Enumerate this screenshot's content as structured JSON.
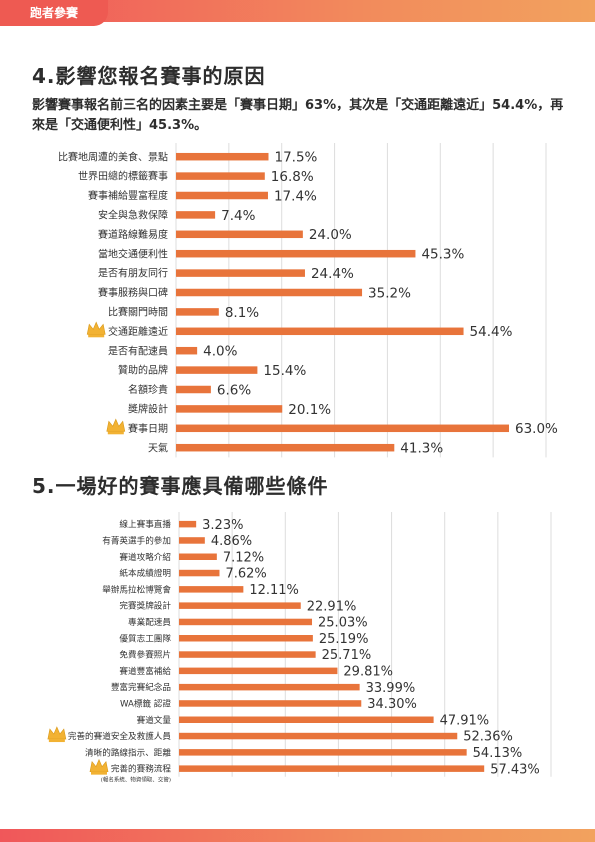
{
  "header": {
    "tab_label": "跑者參賽"
  },
  "section4": {
    "title": "4.影響您報名賽事的原因",
    "summary": "影響賽事報名前三名的因素主要是「賽事日期」63%，其次是「交通距離遠近」54.4%，再來是「交通便利性」45.3%。"
  },
  "section5": {
    "title": "5.一場好的賽事應具備哪些條件"
  },
  "colors": {
    "bar": "#e8743b",
    "grid": "#dddddd",
    "text": "#333333",
    "crown": "#f2b233"
  },
  "chart_data": [
    {
      "type": "bar",
      "orientation": "horizontal",
      "categories": [
        "比賽地周遭的美食、景點",
        "世界田總的標籤賽事",
        "賽事補給豐富程度",
        "安全與急救保障",
        "賽道路線難易度",
        "當地交通便利性",
        "是否有朋友同行",
        "賽事服務與口碑",
        "比賽關門時間",
        "交通距離遠近",
        "是否有配速員",
        "贊助的品牌",
        "名額珍貴",
        "獎牌設計",
        "賽事日期",
        "天氣"
      ],
      "values": [
        17.5,
        16.8,
        17.4,
        7.4,
        24.0,
        45.3,
        24.4,
        35.2,
        8.1,
        54.4,
        4.0,
        15.4,
        6.6,
        20.1,
        63.0,
        41.3
      ],
      "labels": [
        "17.5%",
        "16.8%",
        "17.4%",
        "7.4%",
        "24.0%",
        "45.3%",
        "24.4%",
        "35.2%",
        "8.1%",
        "54.4%",
        "4.0%",
        "15.4%",
        "6.6%",
        "20.1%",
        "63.0%",
        "41.3%"
      ],
      "crowned": [
        9,
        14
      ],
      "xlim": [
        0,
        70
      ]
    },
    {
      "type": "bar",
      "orientation": "horizontal",
      "categories": [
        "線上賽事直播",
        "有菁英選手的參加",
        "賽道攻略介紹",
        "紙本成績證明",
        "舉辦馬拉松博覽會",
        "完賽獎牌設計",
        "專業配速員",
        "優質志工團隊",
        "免費參賽照片",
        "賽道豐富補給",
        "豐富完賽紀念品",
        "WA標籤 認證",
        "賽道文量",
        "完善的賽道安全及救護人員",
        "清晰的路線指示、距離",
        "完善的賽務流程"
      ],
      "category_notes": [
        "",
        "",
        "",
        "",
        "",
        "",
        "",
        "",
        "",
        "",
        "",
        "",
        "",
        "",
        "",
        "(報名系統、物資領取、交管)"
      ],
      "values": [
        3.23,
        4.86,
        7.12,
        7.62,
        12.11,
        22.91,
        25.03,
        25.19,
        25.71,
        29.81,
        33.99,
        34.3,
        47.91,
        52.36,
        54.13,
        57.43
      ],
      "labels": [
        "3.23%",
        "4.86%",
        "7.12%",
        "7.62%",
        "12.11%",
        "22.91%",
        "25.03%",
        "25.19%",
        "25.71%",
        "29.81%",
        "33.99%",
        "34.30%",
        "47.91%",
        "52.36%",
        "54.13%",
        "57.43%"
      ],
      "crowned": [
        13,
        15
      ],
      "xlim": [
        0,
        70
      ]
    }
  ]
}
